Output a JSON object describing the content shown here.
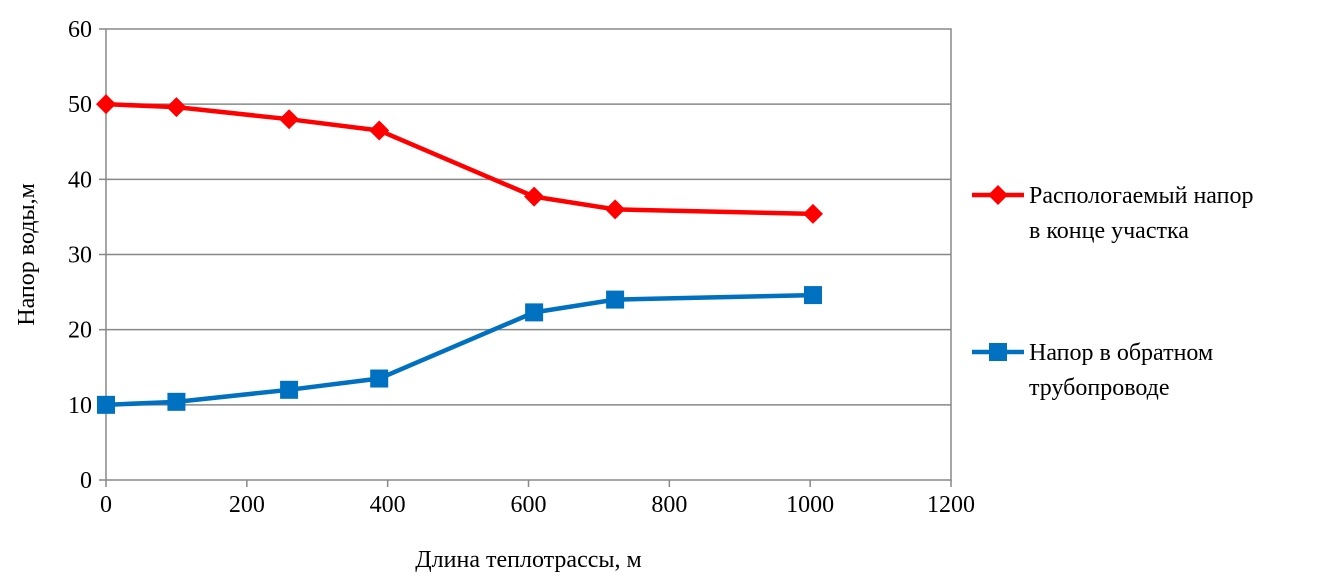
{
  "chart_data": {
    "type": "line",
    "xlabel": "Длина теплотрассы, м",
    "ylabel": "Напор воды,м",
    "xlim": [
      0,
      1200
    ],
    "ylim": [
      0,
      60
    ],
    "x_ticks": [
      "0",
      "200",
      "400",
      "600",
      "800",
      "1000",
      "1200"
    ],
    "y_ticks": [
      "0",
      "10",
      "20",
      "30",
      "40",
      "50",
      "60"
    ],
    "grid": "horizontal",
    "legend_position": "right",
    "series": [
      {
        "name_lines": [
          "Распологаемый напор",
          "в конце участка"
        ],
        "color": "#ff0000",
        "marker": "diamond",
        "points": [
          [
            0,
            50
          ],
          [
            100,
            49.6
          ],
          [
            260,
            48
          ],
          [
            388,
            46.5
          ],
          [
            608,
            37.7
          ],
          [
            723,
            36
          ],
          [
            1004,
            35.4
          ]
        ]
      },
      {
        "name_lines": [
          "Напор в обратном",
          "трубопроводе"
        ],
        "color": "#0070c0",
        "marker": "square",
        "points": [
          [
            0,
            10
          ],
          [
            100,
            10.4
          ],
          [
            260,
            12
          ],
          [
            388,
            13.5
          ],
          [
            608,
            22.3
          ],
          [
            723,
            24
          ],
          [
            1004,
            24.6
          ]
        ]
      }
    ]
  }
}
